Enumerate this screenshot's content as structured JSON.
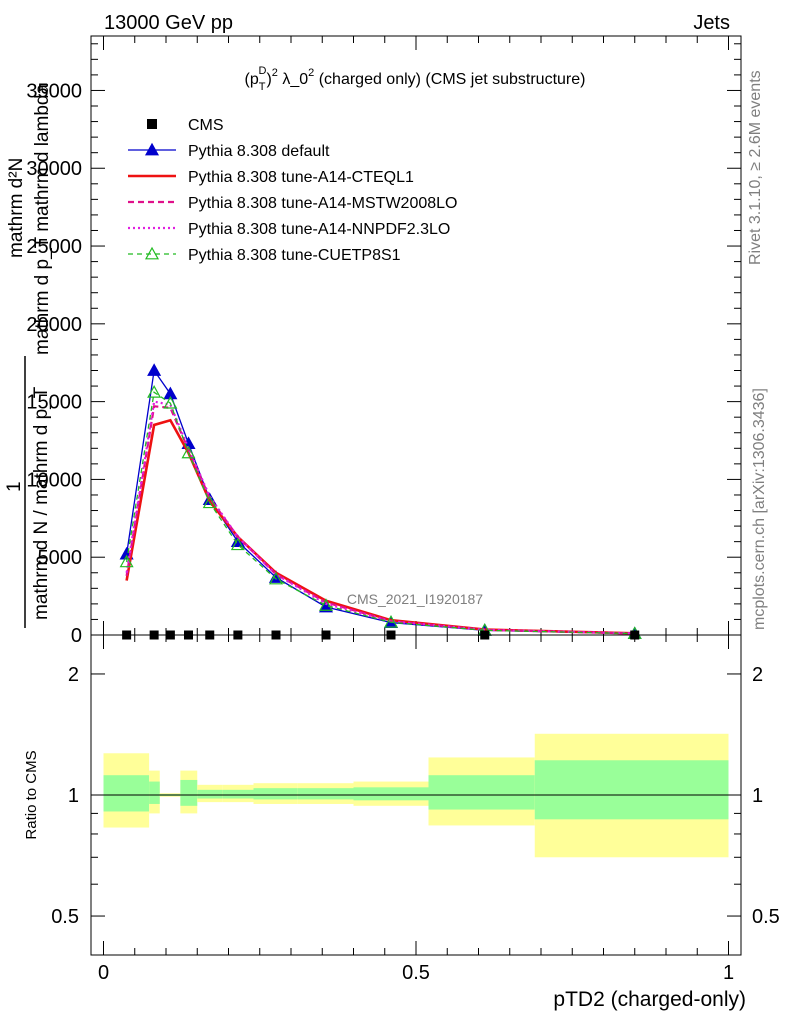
{
  "header": {
    "energy": "13000 GeV pp",
    "process": "Jets",
    "rivet": "Rivet 3.1.10, ≥ 2.6M events",
    "mcplots": "mcplots.cern.ch [arXiv:1306.3436]",
    "watermark": "CMS_2021_I1920187"
  },
  "main_panel": {
    "title": "(p_T^D)^2 λ_0^2 (charged only) (CMS jet substructure)",
    "ylabel_num": "mathrm d²N",
    "ylabel_den": "mathrm d p_T mathrm d lambda",
    "ylabel_pre_num": "1",
    "ylabel_pre_den": "mathrm d N / mathrm d p_T",
    "yticks": [
      "0",
      "5000",
      "10000",
      "15000",
      "20000",
      "25000",
      "30000",
      "35000"
    ]
  },
  "ratio_panel": {
    "ylabel": "Ratio to CMS",
    "yticks": [
      "0.5",
      "1",
      "2"
    ]
  },
  "xaxis": {
    "label": "pTD2 (charged-only)",
    "ticks": [
      "0",
      "0.5",
      "1"
    ]
  },
  "legend": [
    {
      "label": "CMS",
      "color": "#000000"
    },
    {
      "label": "Pythia 8.308 default",
      "color": "#0000cc"
    },
    {
      "label": "Pythia 8.308 tune-A14-CTEQL1",
      "color": "#ee1111"
    },
    {
      "label": "Pythia 8.308 tune-A14-MSTW2008LO",
      "color": "#e0108a"
    },
    {
      "label": "Pythia 8.308 tune-A14-NNPDF2.3LO",
      "color": "#e020e0"
    },
    {
      "label": "Pythia 8.308 tune-CUETP8S1",
      "color": "#22bb22"
    }
  ],
  "chart_data": {
    "type": "line",
    "xlim": [
      -0.02,
      1.02
    ],
    "ylim": [
      0,
      38500
    ],
    "ratio_ylim_log": [
      0.4,
      2.5
    ],
    "grid": false,
    "legend_position": "top-left",
    "x": [
      0.037,
      0.081,
      0.107,
      0.136,
      0.17,
      0.215,
      0.276,
      0.356,
      0.46,
      0.61,
      0.85
    ],
    "cms": [
      0,
      0,
      0,
      0,
      0,
      0,
      0,
      0,
      0,
      0,
      0
    ],
    "series": [
      {
        "name": "Pythia 8.308 default",
        "values": [
          5200,
          17000,
          15500,
          12300,
          8700,
          6000,
          3700,
          1800,
          800,
          300,
          90
        ]
      },
      {
        "name": "Pythia 8.308 tune-A14-CTEQL1",
        "values": [
          3500,
          13500,
          13800,
          11700,
          8600,
          6300,
          4000,
          2200,
          950,
          350,
          110
        ]
      },
      {
        "name": "Pythia 8.308 tune-A14-MSTW2008LO",
        "values": [
          3800,
          14700,
          14600,
          11900,
          8800,
          6300,
          3900,
          2100,
          900,
          330,
          100
        ]
      },
      {
        "name": "Pythia 8.308 tune-A14-NNPDF2.3LO",
        "values": [
          4000,
          15000,
          14800,
          12000,
          8900,
          6300,
          3900,
          2000,
          880,
          330,
          100
        ]
      },
      {
        "name": "Pythia 8.308 tune-CUETP8S1",
        "values": [
          4700,
          15600,
          14900,
          11700,
          8500,
          5800,
          3600,
          1900,
          820,
          300,
          90
        ]
      }
    ],
    "ratio_bands": [
      {
        "x0": 0.0,
        "x1": 0.073,
        "yellow": [
          0.83,
          1.27
        ],
        "green": [
          0.91,
          1.12
        ]
      },
      {
        "x0": 0.073,
        "x1": 0.09,
        "yellow": [
          0.9,
          1.15
        ],
        "green": [
          0.95,
          1.08
        ]
      },
      {
        "x0": 0.09,
        "x1": 0.123,
        "yellow": [
          0.99,
          1.01
        ],
        "green": [
          0.995,
          1.005
        ]
      },
      {
        "x0": 0.123,
        "x1": 0.15,
        "yellow": [
          0.9,
          1.15
        ],
        "green": [
          0.94,
          1.09
        ]
      },
      {
        "x0": 0.15,
        "x1": 0.19,
        "yellow": [
          0.96,
          1.06
        ],
        "green": [
          0.98,
          1.03
        ]
      },
      {
        "x0": 0.19,
        "x1": 0.24,
        "yellow": [
          0.96,
          1.06
        ],
        "green": [
          0.98,
          1.03
        ]
      },
      {
        "x0": 0.24,
        "x1": 0.31,
        "yellow": [
          0.95,
          1.07
        ],
        "green": [
          0.975,
          1.04
        ]
      },
      {
        "x0": 0.31,
        "x1": 0.4,
        "yellow": [
          0.95,
          1.07
        ],
        "green": [
          0.975,
          1.04
        ]
      },
      {
        "x0": 0.4,
        "x1": 0.52,
        "yellow": [
          0.94,
          1.08
        ],
        "green": [
          0.97,
          1.045
        ]
      },
      {
        "x0": 0.52,
        "x1": 0.69,
        "yellow": [
          0.84,
          1.24
        ],
        "green": [
          0.92,
          1.12
        ]
      },
      {
        "x0": 0.69,
        "x1": 1.0,
        "yellow": [
          0.7,
          1.42
        ],
        "green": [
          0.87,
          1.22
        ]
      }
    ]
  }
}
